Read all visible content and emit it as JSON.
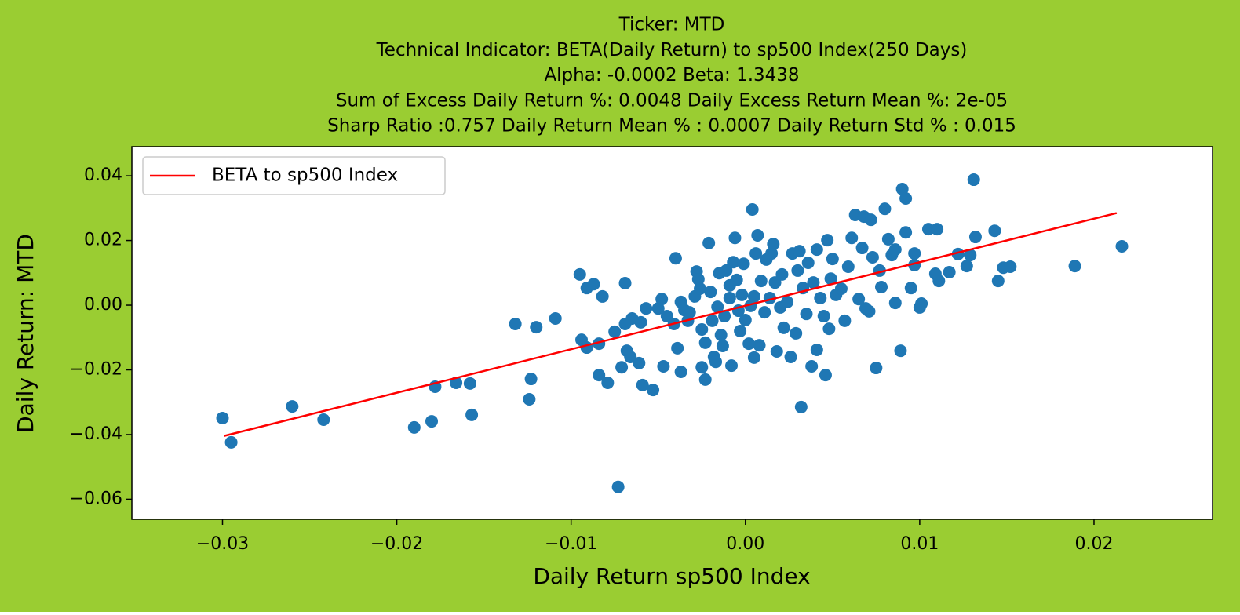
{
  "chart_data": {
    "type": "scatter",
    "title": [
      "Ticker: MTD",
      "Technical Indicator: BETA(Daily Return) to sp500 Index(250 Days)",
      "Alpha: -0.0002   Beta: 1.3438",
      "Sum of Excess Daily Return %: 0.0048   Daily Excess Return Mean %: 2e-05",
      "Sharp Ratio :0.757    Daily Return Mean % : 0.0007    Daily Return Std % : 0.015"
    ],
    "xlabel": "Daily Return sp500 Index",
    "ylabel": "Daily Return: MTD",
    "background": "#9acd32",
    "legend": "upper left",
    "grid": false,
    "xlim": [
      -0.0352,
      0.0268
    ],
    "ylim": [
      -0.0662,
      0.049
    ],
    "xticks": [
      {
        "value": -0.03,
        "label": "−0.03"
      },
      {
        "value": -0.02,
        "label": "−0.02"
      },
      {
        "value": -0.01,
        "label": "−0.01"
      },
      {
        "value": 0,
        "label": "0.00"
      },
      {
        "value": 0.01,
        "label": "0.01"
      },
      {
        "value": 0.02,
        "label": "0.02"
      }
    ],
    "yticks": [
      {
        "value": -0.06,
        "label": "−0.06"
      },
      {
        "value": -0.04,
        "label": "−0.04"
      },
      {
        "value": -0.02,
        "label": "−0.02"
      },
      {
        "value": 0,
        "label": "0.00"
      },
      {
        "value": 0.02,
        "label": "0.02"
      },
      {
        "value": 0.04,
        "label": "0.04"
      }
    ],
    "points": {
      "color": "#1f77b4",
      "x": [
        -0.03,
        -0.0295,
        -0.026,
        -0.0242,
        -0.019,
        -0.018,
        -0.0178,
        -0.0166,
        -0.0158,
        -0.0157,
        -0.0132,
        -0.0123,
        -0.0124,
        -0.012,
        -0.0109,
        -0.0095,
        -0.0094,
        -0.0091,
        -0.0087,
        -0.0091,
        -0.0084,
        -0.0084,
        -0.0082,
        -0.0079,
        -0.0075,
        -0.0073,
        -0.0069,
        -0.0069,
        -0.0071,
        -0.0068,
        -0.0066,
        -0.0065,
        -0.0061,
        -0.0059,
        -0.0057,
        -0.006,
        -0.0053,
        -0.005,
        -0.0048,
        -0.0047,
        -0.0045,
        -0.0041,
        -0.004,
        -0.0039,
        -0.0037,
        -0.0037,
        -0.0035,
        -0.0033,
        -0.0032,
        -0.0029,
        -0.0028,
        -0.0027,
        -0.0026,
        -0.0025,
        -0.0025,
        -0.0023,
        -0.0023,
        -0.0021,
        -0.002,
        -0.0019,
        -0.0018,
        -0.0017,
        -0.0016,
        -0.0015,
        -0.0014,
        -0.0013,
        -0.0012,
        -0.0011,
        -0.0009,
        -0.0009,
        -0.0008,
        -0.0007,
        -0.0006,
        -0.0005,
        -0.0004,
        -0.0003,
        -0.0002,
        -0.0001,
        0.0,
        0.0002,
        0.0003,
        0.0004,
        0.0005,
        0.0005,
        0.0006,
        0.0007,
        0.0008,
        0.0009,
        0.0011,
        0.0012,
        0.0014,
        0.0015,
        0.0016,
        0.0017,
        0.0018,
        0.002,
        0.0021,
        0.0022,
        0.0024,
        0.0026,
        0.0027,
        0.0029,
        0.003,
        0.0031,
        0.0032,
        0.0033,
        0.0035,
        0.0036,
        0.0038,
        0.0039,
        0.0041,
        0.0041,
        0.0043,
        0.0045,
        0.0046,
        0.0047,
        0.0048,
        0.0049,
        0.005,
        0.0052,
        0.0055,
        0.0057,
        0.0059,
        0.0061,
        0.0063,
        0.0065,
        0.0067,
        0.0068,
        0.0069,
        0.0071,
        0.0072,
        0.0073,
        0.0075,
        0.0077,
        0.0078,
        0.008,
        0.0082,
        0.0084,
        0.0086,
        0.0086,
        0.0089,
        0.009,
        0.0092,
        0.0092,
        0.0095,
        0.0097,
        0.0097,
        0.01,
        0.0101,
        0.0105,
        0.011,
        0.0109,
        0.0111,
        0.0117,
        0.0122,
        0.0127,
        0.0129,
        0.0131,
        0.0132,
        0.0143,
        0.0145,
        0.0148,
        0.0152,
        0.0189,
        0.0216
      ],
      "y": [
        -0.0349,
        -0.0424,
        -0.0313,
        -0.0354,
        -0.0378,
        -0.0359,
        -0.0252,
        -0.024,
        -0.0242,
        -0.0339,
        -0.0058,
        -0.0228,
        -0.0291,
        -0.0068,
        -0.0041,
        0.0095,
        -0.0107,
        0.0053,
        0.0065,
        -0.0131,
        -0.0119,
        -0.0216,
        0.0027,
        -0.024,
        -0.0082,
        -0.0562,
        0.0068,
        -0.0058,
        -0.0192,
        -0.0141,
        -0.016,
        -0.0041,
        -0.0179,
        -0.0247,
        -0.001,
        -0.0053,
        -0.0262,
        -0.001,
        0.0019,
        -0.0189,
        -0.0034,
        -0.0058,
        0.0145,
        -0.0133,
        -0.0206,
        0.001,
        -0.0015,
        -0.0048,
        -0.0022,
        0.0027,
        0.0104,
        0.008,
        0.0051,
        -0.0075,
        -0.0192,
        -0.0116,
        -0.023,
        0.0192,
        0.0041,
        -0.0048,
        -0.016,
        -0.0175,
        -0.0005,
        0.0099,
        -0.0092,
        -0.0126,
        -0.0034,
        0.0107,
        0.0061,
        0.0022,
        -0.0187,
        0.0133,
        0.0208,
        0.0078,
        -0.0017,
        -0.008,
        0.0032,
        0.0128,
        -0.0046,
        -0.0119,
        -0.0002,
        0.0296,
        -0.0162,
        0.0027,
        0.016,
        0.0216,
        -0.0124,
        0.0075,
        -0.0022,
        0.0141,
        0.0022,
        0.016,
        0.0189,
        0.007,
        -0.0143,
        -0.0007,
        0.0095,
        -0.007,
        0.001,
        -0.016,
        0.016,
        -0.0087,
        0.0107,
        0.0167,
        -0.0315,
        0.0053,
        -0.0027,
        0.0131,
        -0.0189,
        0.007,
        0.0172,
        -0.0138,
        0.0022,
        -0.0034,
        -0.0216,
        0.0201,
        -0.0073,
        0.0082,
        0.0143,
        0.0032,
        0.0051,
        -0.0048,
        0.0119,
        0.0208,
        0.0279,
        0.0019,
        0.0177,
        0.0274,
        -0.001,
        -0.0019,
        0.0264,
        0.0148,
        -0.0194,
        0.0107,
        0.0056,
        0.0298,
        0.0204,
        0.0155,
        0.0007,
        0.0172,
        -0.0141,
        0.0359,
        0.033,
        0.0225,
        0.0053,
        0.016,
        0.0124,
        -0.0007,
        0.0005,
        0.0235,
        0.0235,
        0.0097,
        0.0075,
        0.0102,
        0.0158,
        0.0121,
        0.0155,
        0.0388,
        0.0211,
        0.023,
        0.0075,
        0.0116,
        0.0119,
        0.0121,
        0.0182
      ]
    },
    "series": [
      {
        "name": "BETA to sp500 Index",
        "color": "#ff0000",
        "x": [
          -0.0299,
          0.0213
        ],
        "y": [
          -0.0404,
          0.0285
        ]
      }
    ]
  }
}
